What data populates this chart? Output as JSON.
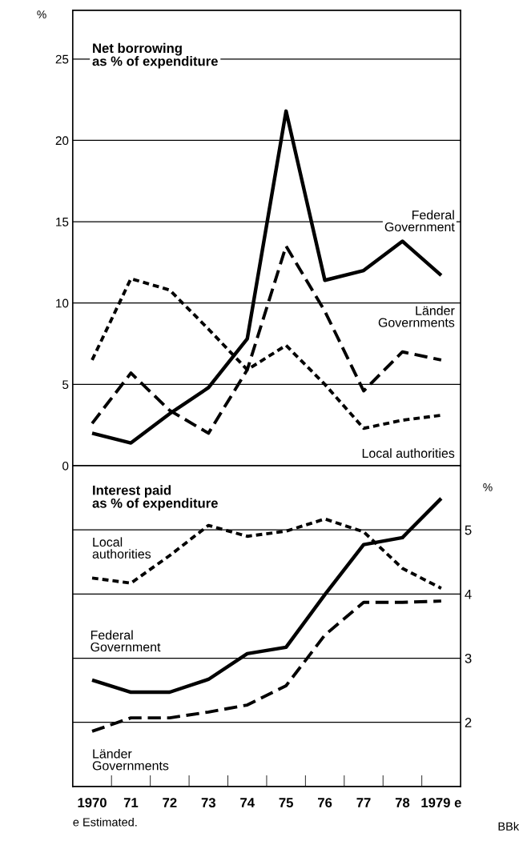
{
  "chart_data": [
    {
      "type": "line",
      "title": "Net borrowing\nas % of expenditure",
      "ylabel": "%",
      "categories": [
        null,
        null,
        null,
        null,
        null,
        null,
        null,
        null,
        null,
        null
      ],
      "series": [
        {
          "name": "Federal\nGovernment",
          "color": "#000000",
          "line_style": "solid",
          "values": [
            2.0,
            1.4,
            3.2,
            4.8,
            7.8,
            21.8,
            11.4,
            12.0,
            13.8,
            11.7
          ]
        },
        {
          "name": "Länder\nGovernments",
          "color": "#000000",
          "line_style": "dashed",
          "values": [
            2.6,
            5.7,
            3.4,
            2.0,
            5.9,
            13.5,
            9.5,
            4.6,
            7.0,
            6.5
          ]
        },
        {
          "name": "Local authorities",
          "color": "#000000",
          "line_style": "dotted",
          "values": [
            6.5,
            11.5,
            10.8,
            8.4,
            5.9,
            7.4,
            5.0,
            2.3,
            2.8,
            3.1
          ]
        }
      ],
      "ylim": [
        0,
        28
      ],
      "yticks": [
        0,
        5,
        10,
        15,
        20,
        25
      ],
      "grid": "y",
      "legend": false,
      "tick_labels": "y"
    },
    {
      "type": "line",
      "title": "Interest paid\nas % of expenditure",
      "ylabel": "%",
      "categories": [
        "1970",
        "71",
        "72",
        "73",
        "74",
        "75",
        "76",
        "77",
        "78",
        "1979 e"
      ],
      "series": [
        {
          "name": "Local\nauthorities",
          "color": "#000000",
          "line_style": "dotted",
          "values": [
            4.25,
            4.17,
            4.6,
            5.07,
            4.9,
            4.98,
            5.17,
            4.97,
            4.4,
            4.09
          ]
        },
        {
          "name": "Federal\nGovernment",
          "color": "#000000",
          "line_style": "solid",
          "values": [
            2.66,
            2.47,
            2.47,
            2.67,
            3.07,
            3.17,
            3.99,
            4.77,
            4.88,
            5.49
          ]
        },
        {
          "name": "Länder\nGovernments",
          "color": "#000000",
          "line_style": "dashed",
          "values": [
            1.86,
            2.07,
            2.07,
            2.16,
            2.27,
            2.57,
            3.36,
            3.87,
            3.87,
            3.89
          ]
        }
      ],
      "ylim": [
        1,
        6
      ],
      "yticks": [
        2,
        3,
        4,
        5
      ],
      "grid": "y",
      "legend": false,
      "annotations": [
        "e Estimated.",
        "BBk"
      ]
    }
  ]
}
